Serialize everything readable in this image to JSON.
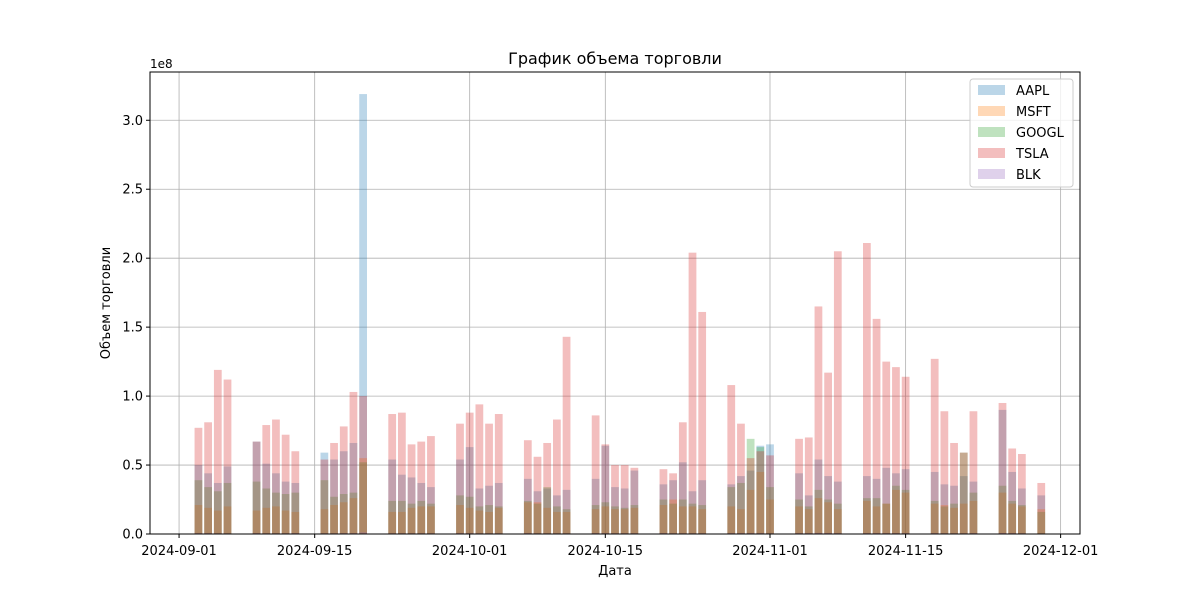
{
  "chart_data": {
    "type": "bar",
    "title": "График объема торговли",
    "xlabel": "Дата",
    "ylabel": "Объем торговли",
    "y_multiplier_label": "1e8",
    "y_scale": 100000000,
    "ylim": [
      0,
      3.35
    ],
    "xlim": [
      "2024-08-29",
      "2024-12-03"
    ],
    "x_ticks": [
      "2024-09-01",
      "2024-09-15",
      "2024-10-01",
      "2024-10-15",
      "2024-11-01",
      "2024-11-15",
      "2024-12-01"
    ],
    "y_ticks": [
      "0.0",
      "0.5",
      "1.0",
      "1.5",
      "2.0",
      "2.5",
      "3.0"
    ],
    "grid": true,
    "legend_position": "upper-right",
    "bar_opacity": 0.3,
    "dates": [
      "2024-09-03",
      "2024-09-04",
      "2024-09-05",
      "2024-09-06",
      "2024-09-09",
      "2024-09-10",
      "2024-09-11",
      "2024-09-12",
      "2024-09-13",
      "2024-09-16",
      "2024-09-17",
      "2024-09-18",
      "2024-09-19",
      "2024-09-20",
      "2024-09-23",
      "2024-09-24",
      "2024-09-25",
      "2024-09-26",
      "2024-09-27",
      "2024-09-30",
      "2024-10-01",
      "2024-10-02",
      "2024-10-03",
      "2024-10-04",
      "2024-10-07",
      "2024-10-08",
      "2024-10-09",
      "2024-10-10",
      "2024-10-11",
      "2024-10-14",
      "2024-10-15",
      "2024-10-16",
      "2024-10-17",
      "2024-10-18",
      "2024-10-21",
      "2024-10-22",
      "2024-10-23",
      "2024-10-24",
      "2024-10-25",
      "2024-10-28",
      "2024-10-29",
      "2024-10-30",
      "2024-10-31",
      "2024-11-01",
      "2024-11-04",
      "2024-11-05",
      "2024-11-06",
      "2024-11-07",
      "2024-11-08",
      "2024-11-11",
      "2024-11-12",
      "2024-11-13",
      "2024-11-14",
      "2024-11-15",
      "2024-11-18",
      "2024-11-19",
      "2024-11-20",
      "2024-11-21",
      "2024-11-22",
      "2024-11-25",
      "2024-11-26",
      "2024-11-27",
      "2024-11-29"
    ],
    "series": [
      {
        "name": "AAPL",
        "color": "#1f77b4",
        "values": [
          0.5,
          0.44,
          0.37,
          0.49,
          0.67,
          0.51,
          0.44,
          0.38,
          0.37,
          0.59,
          0.54,
          0.6,
          0.66,
          3.19,
          0.54,
          0.43,
          0.41,
          0.37,
          0.34,
          0.54,
          0.63,
          0.33,
          0.35,
          0.37,
          0.4,
          0.31,
          0.33,
          0.28,
          0.32,
          0.4,
          0.64,
          0.34,
          0.33,
          0.46,
          0.36,
          0.39,
          0.52,
          0.31,
          0.39,
          0.36,
          0.42,
          0.46,
          0.64,
          0.65,
          0.44,
          0.28,
          0.54,
          0.42,
          0.38,
          0.42,
          0.4,
          0.48,
          0.44,
          0.47,
          0.45,
          0.36,
          0.35,
          0.42,
          0.38,
          0.9,
          0.45,
          0.33,
          0.28
        ]
      },
      {
        "name": "MSFT",
        "color": "#ff7f0e",
        "values": [
          0.21,
          0.19,
          0.17,
          0.2,
          0.17,
          0.19,
          0.2,
          0.17,
          0.16,
          0.18,
          0.21,
          0.23,
          0.26,
          0.55,
          0.16,
          0.16,
          0.19,
          0.2,
          0.2,
          0.21,
          0.19,
          0.17,
          0.16,
          0.19,
          0.23,
          0.23,
          0.19,
          0.16,
          0.16,
          0.18,
          0.2,
          0.18,
          0.18,
          0.19,
          0.21,
          0.25,
          0.2,
          0.2,
          0.18,
          0.2,
          0.18,
          0.32,
          0.45,
          0.25,
          0.2,
          0.18,
          0.26,
          0.23,
          0.18,
          0.24,
          0.2,
          0.22,
          0.32,
          0.3,
          0.22,
          0.21,
          0.19,
          0.22,
          0.24,
          0.3,
          0.22,
          0.2,
          0.18
        ]
      },
      {
        "name": "GOOGL",
        "color": "#2ca02c",
        "values": [
          0.39,
          0.34,
          0.31,
          0.37,
          0.38,
          0.33,
          0.3,
          0.29,
          0.3,
          0.39,
          0.27,
          0.29,
          0.3,
          0.52,
          0.24,
          0.24,
          0.22,
          0.24,
          0.22,
          0.28,
          0.27,
          0.2,
          0.21,
          0.2,
          0.24,
          0.22,
          0.34,
          0.2,
          0.18,
          0.21,
          0.23,
          0.2,
          0.19,
          0.21,
          0.25,
          0.22,
          0.25,
          0.22,
          0.21,
          0.34,
          0.37,
          0.69,
          0.63,
          0.34,
          0.25,
          0.2,
          0.32,
          0.25,
          0.22,
          0.26,
          0.26,
          0.22,
          0.35,
          0.32,
          0.24,
          0.2,
          0.22,
          0.59,
          0.3,
          0.35,
          0.24,
          0.21,
          0.16
        ]
      },
      {
        "name": "TSLA",
        "color": "#d62728",
        "values": [
          0.77,
          0.81,
          1.19,
          1.12,
          0.67,
          0.79,
          0.83,
          0.72,
          0.6,
          0.54,
          0.66,
          0.78,
          1.03,
          1.0,
          0.87,
          0.88,
          0.65,
          0.67,
          0.71,
          0.8,
          0.88,
          0.94,
          0.8,
          0.87,
          0.68,
          0.56,
          0.66,
          0.83,
          1.43,
          0.86,
          0.65,
          0.5,
          0.5,
          0.48,
          0.47,
          0.44,
          0.81,
          2.04,
          1.61,
          1.08,
          0.8,
          0.55,
          0.6,
          0.57,
          0.69,
          0.7,
          1.65,
          1.17,
          2.05,
          2.11,
          1.56,
          1.25,
          1.21,
          1.14,
          1.27,
          0.89,
          0.66,
          0.59,
          0.89,
          0.95,
          0.62,
          0.58,
          0.37
        ]
      },
      {
        "name": "BLK",
        "color": "#9467bd",
        "values": [
          0.006,
          0.006,
          0.005,
          0.005,
          0.006,
          0.005,
          0.005,
          0.005,
          0.006,
          0.005,
          0.005,
          0.006,
          0.006,
          0.012,
          0.005,
          0.005,
          0.005,
          0.005,
          0.005,
          0.006,
          0.006,
          0.005,
          0.005,
          0.005,
          0.006,
          0.005,
          0.005,
          0.005,
          0.005,
          0.006,
          0.006,
          0.005,
          0.005,
          0.005,
          0.006,
          0.005,
          0.005,
          0.005,
          0.005,
          0.006,
          0.006,
          0.006,
          0.006,
          0.005,
          0.006,
          0.006,
          0.008,
          0.007,
          0.006,
          0.006,
          0.006,
          0.006,
          0.006,
          0.006,
          0.006,
          0.005,
          0.005,
          0.005,
          0.006,
          0.007,
          0.006,
          0.005,
          0.003
        ]
      }
    ]
  }
}
